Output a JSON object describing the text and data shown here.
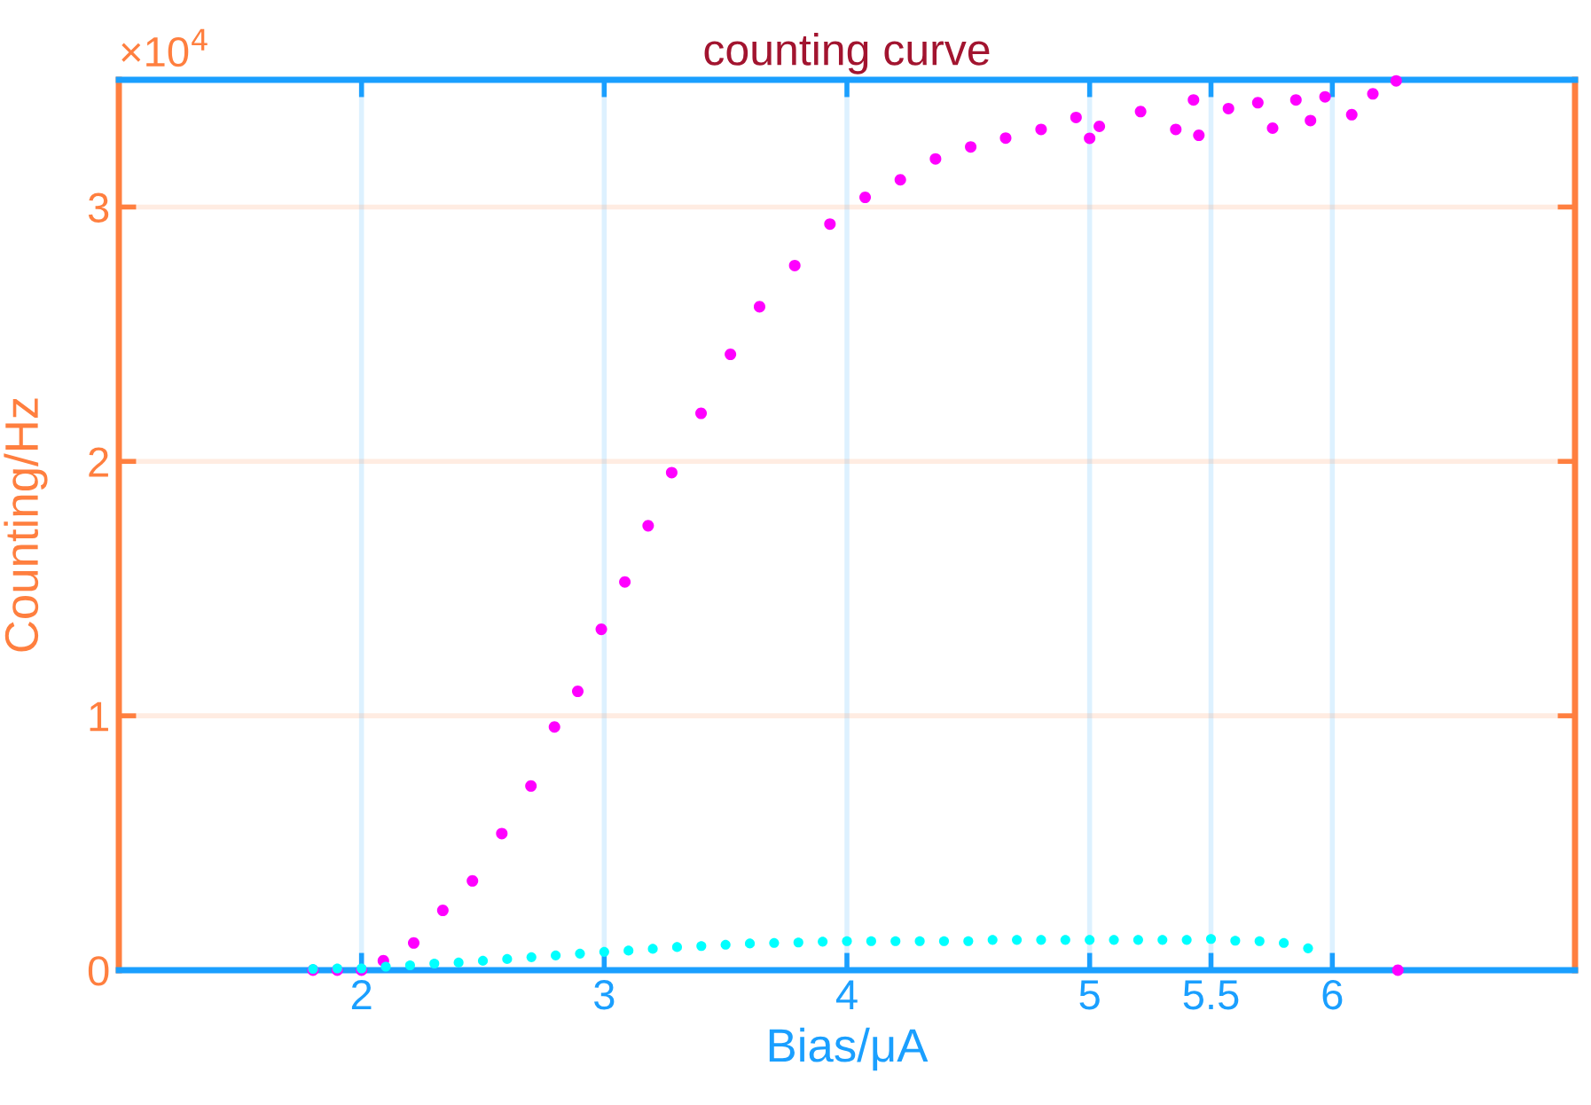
{
  "chart_data": {
    "type": "scatter",
    "title": "counting curve",
    "xlabel": "Bias/μA",
    "ylabel": "Counting/Hz",
    "annotations": [
      "×10$^{4}$"
    ],
    "xlim": [
      1,
      7
    ],
    "xticks": [
      2,
      3,
      4,
      5,
      5.5,
      6
    ],
    "ylim": [
      0,
      3.5
    ],
    "yticks": [
      0,
      1,
      2,
      3
    ],
    "grid": true,
    "marker": "circle",
    "series": [
      {
        "color": "#ff00ff",
        "x": [
          1.8,
          1.9,
          2.0,
          2.09,
          2.215,
          2.335,
          2.457,
          2.578,
          2.698,
          2.795,
          2.891,
          2.988,
          3.085,
          3.181,
          3.278,
          3.399,
          3.52,
          3.64,
          3.785,
          3.93,
          4.075,
          4.22,
          4.365,
          4.51,
          4.654,
          4.8,
          4.944,
          5.0,
          5.04,
          5.21,
          5.355,
          5.428,
          5.45,
          5.572,
          5.693,
          5.754,
          5.85,
          5.91,
          5.97,
          6.08,
          6.167,
          6.263,
          6.27
        ],
        "values": [
          0,
          0,
          0,
          0.037,
          0.107,
          0.235,
          0.351,
          0.537,
          0.724,
          0.956,
          1.096,
          1.34,
          1.526,
          1.747,
          1.956,
          2.189,
          2.421,
          2.608,
          2.77,
          2.933,
          3.038,
          3.107,
          3.189,
          3.236,
          3.271,
          3.305,
          3.352,
          3.27,
          3.317,
          3.375,
          3.305,
          3.421,
          3.282,
          3.387,
          3.41,
          3.31,
          3.421,
          3.34,
          3.433,
          3.363,
          3.445,
          3.496,
          0
        ]
      },
      {
        "color": "#00ffff",
        "x": [
          1.8,
          1.9,
          2.0,
          2.1,
          2.2,
          2.3,
          2.4,
          2.5,
          2.6,
          2.7,
          2.8,
          2.9,
          3.0,
          3.1,
          3.2,
          3.3,
          3.4,
          3.5,
          3.6,
          3.7,
          3.8,
          3.9,
          4.0,
          4.1,
          4.2,
          4.3,
          4.4,
          4.5,
          4.6,
          4.7,
          4.8,
          4.9,
          5.0,
          5.1,
          5.2,
          5.3,
          5.4,
          5.5,
          5.6,
          5.7,
          5.8,
          5.9
        ],
        "values": [
          0.005,
          0.007,
          0.007,
          0.014,
          0.019,
          0.026,
          0.03,
          0.037,
          0.044,
          0.051,
          0.058,
          0.065,
          0.072,
          0.077,
          0.084,
          0.091,
          0.095,
          0.1,
          0.105,
          0.107,
          0.109,
          0.112,
          0.114,
          0.114,
          0.114,
          0.114,
          0.114,
          0.114,
          0.119,
          0.119,
          0.119,
          0.119,
          0.119,
          0.119,
          0.119,
          0.119,
          0.119,
          0.123,
          0.116,
          0.114,
          0.107,
          0.086
        ]
      }
    ]
  }
}
